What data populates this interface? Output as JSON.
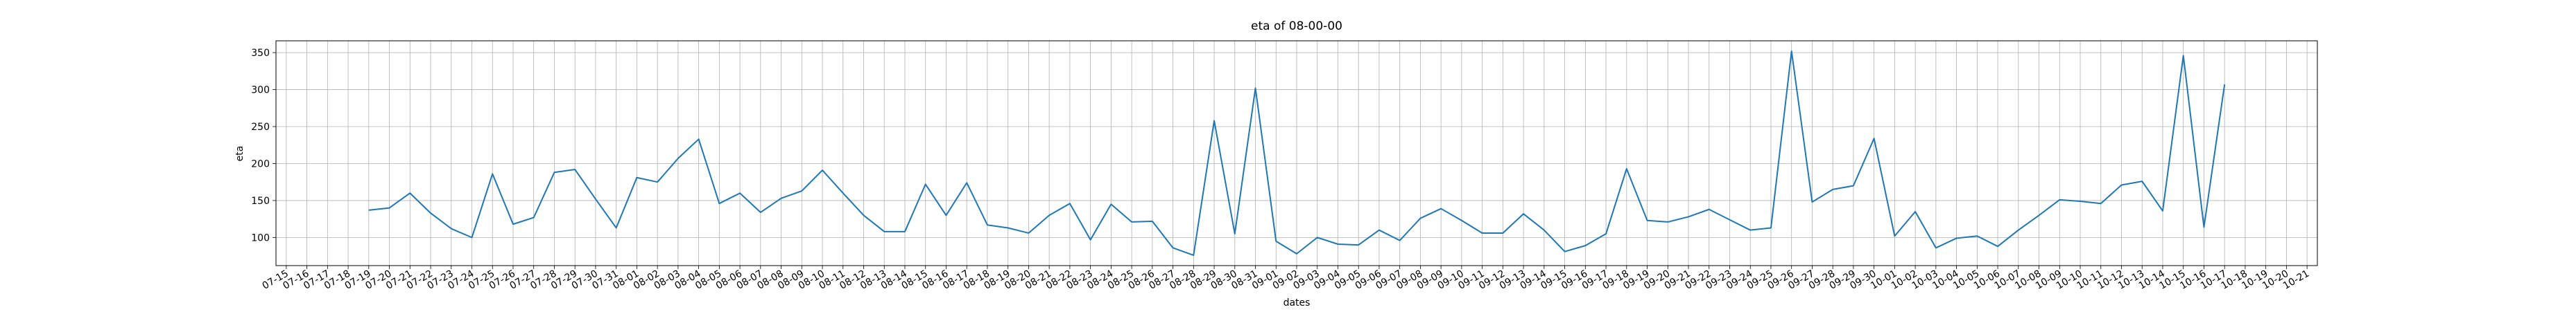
{
  "chart_data": {
    "type": "line",
    "title": "eta of 08-00-00",
    "x_label": "dates",
    "y_label": "eta",
    "categories": [
      "07-15",
      "07-16",
      "07-17",
      "07-18",
      "07-19",
      "07-20",
      "07-21",
      "07-22",
      "07-23",
      "07-24",
      "07-25",
      "07-26",
      "07-27",
      "07-28",
      "07-29",
      "07-30",
      "07-31",
      "08-01",
      "08-02",
      "08-03",
      "08-04",
      "08-05",
      "08-06",
      "08-07",
      "08-08",
      "08-09",
      "08-10",
      "08-11",
      "08-12",
      "08-13",
      "08-14",
      "08-15",
      "08-16",
      "08-17",
      "08-18",
      "08-19",
      "08-20",
      "08-21",
      "08-22",
      "08-23",
      "08-24",
      "08-25",
      "08-26",
      "08-27",
      "08-28",
      "08-29",
      "08-30",
      "08-31",
      "09-01",
      "09-02",
      "09-03",
      "09-04",
      "09-05",
      "09-06",
      "09-07",
      "09-08",
      "09-09",
      "09-10",
      "09-11",
      "09-12",
      "09-13",
      "09-14",
      "09-15",
      "09-16",
      "09-17",
      "09-18",
      "09-19",
      "09-20",
      "09-21",
      "09-22",
      "09-23",
      "09-24",
      "09-25",
      "09-26",
      "09-27",
      "09-28",
      "09-29",
      "09-30",
      "10-01",
      "10-02",
      "10-03",
      "10-04",
      "10-05",
      "10-06",
      "10-07",
      "10-08",
      "10-09",
      "10-10",
      "10-11",
      "10-12",
      "10-13",
      "10-14",
      "10-15",
      "10-16",
      "10-17",
      "10-18",
      "10-19",
      "10-20",
      "10-21"
    ],
    "values": [
      null,
      null,
      null,
      null,
      137,
      140,
      160,
      133,
      112,
      100,
      186,
      118,
      127,
      188,
      192,
      152,
      113,
      181,
      175,
      207,
      233,
      146,
      160,
      134,
      153,
      163,
      191,
      160,
      130,
      108,
      108,
      172,
      130,
      174,
      117,
      113,
      106,
      130,
      146,
      97,
      145,
      121,
      122,
      86,
      76,
      258,
      105,
      302,
      95,
      78,
      100,
      91,
      90,
      110,
      96,
      126,
      139,
      123,
      106,
      106,
      132,
      110,
      81,
      89,
      105,
      193,
      123,
      121,
      128,
      138,
      124,
      110,
      113,
      352,
      148,
      165,
      170,
      234,
      102,
      135,
      86,
      99,
      102,
      88,
      110,
      130,
      151,
      149,
      146,
      171,
      176,
      136,
      346,
      114,
      307,
      null,
      null,
      null,
      null
    ],
    "color": "#1f77b4",
    "ylim": [
      62,
      366
    ],
    "yticks": [
      100,
      150,
      200,
      250,
      300,
      350
    ],
    "grid": true
  }
}
